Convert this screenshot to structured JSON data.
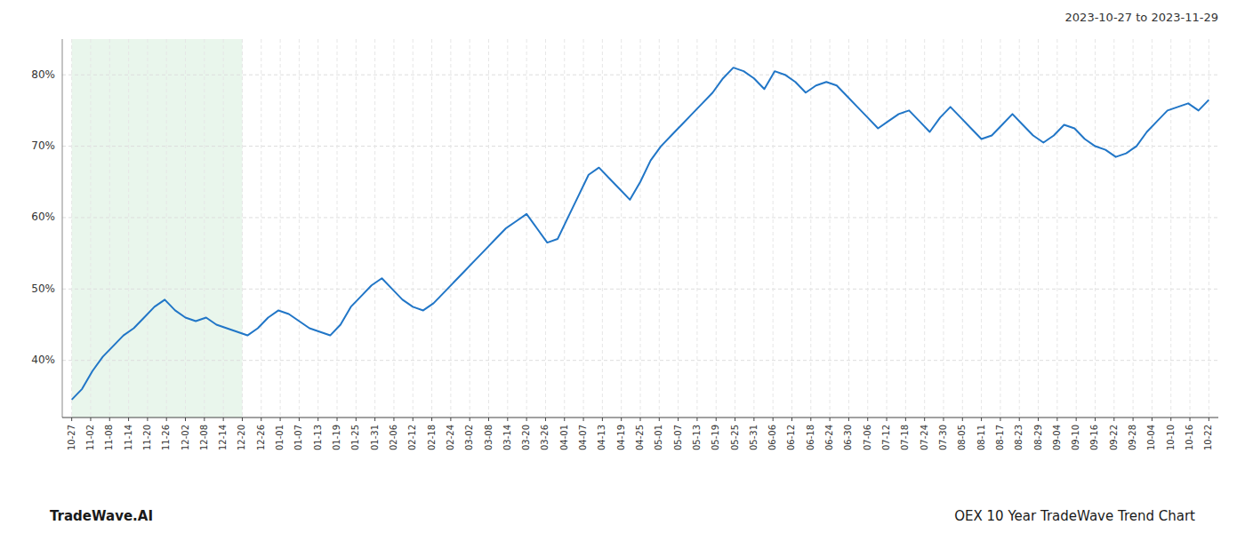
{
  "chart_data": {
    "type": "line",
    "title": "2023-10-27 to 2023-11-29",
    "annotations": [
      "TradeWave.AI",
      "OEX 10 Year TradeWave Trend Chart"
    ],
    "color": "#2176c7",
    "grid": true,
    "highlight": {
      "range": [
        0,
        9
      ],
      "color": "#d4edda"
    },
    "xlim": [
      -0.5,
      60.5
    ],
    "xticks": [
      {
        "value": 0,
        "label": "10-27"
      },
      {
        "value": 1,
        "label": "11-02"
      },
      {
        "value": 2,
        "label": "11-08"
      },
      {
        "value": 3,
        "label": "11-14"
      },
      {
        "value": 4,
        "label": "11-20"
      },
      {
        "value": 5,
        "label": "11-26"
      },
      {
        "value": 6,
        "label": "12-02"
      },
      {
        "value": 7,
        "label": "12-08"
      },
      {
        "value": 8,
        "label": "12-14"
      },
      {
        "value": 9,
        "label": "12-20"
      },
      {
        "value": 10,
        "label": "12-26"
      },
      {
        "value": 11,
        "label": "01-01"
      },
      {
        "value": 12,
        "label": "01-07"
      },
      {
        "value": 13,
        "label": "01-13"
      },
      {
        "value": 14,
        "label": "01-19"
      },
      {
        "value": 15,
        "label": "01-25"
      },
      {
        "value": 16,
        "label": "01-31"
      },
      {
        "value": 17,
        "label": "02-06"
      },
      {
        "value": 18,
        "label": "02-12"
      },
      {
        "value": 19,
        "label": "02-18"
      },
      {
        "value": 20,
        "label": "02-24"
      },
      {
        "value": 21,
        "label": "03-02"
      },
      {
        "value": 22,
        "label": "03-08"
      },
      {
        "value": 23,
        "label": "03-14"
      },
      {
        "value": 24,
        "label": "03-20"
      },
      {
        "value": 25,
        "label": "03-26"
      },
      {
        "value": 26,
        "label": "04-01"
      },
      {
        "value": 27,
        "label": "04-07"
      },
      {
        "value": 28,
        "label": "04-13"
      },
      {
        "value": 29,
        "label": "04-19"
      },
      {
        "value": 30,
        "label": "04-25"
      },
      {
        "value": 31,
        "label": "05-01"
      },
      {
        "value": 32,
        "label": "05-07"
      },
      {
        "value": 33,
        "label": "05-13"
      },
      {
        "value": 34,
        "label": "05-19"
      },
      {
        "value": 35,
        "label": "05-25"
      },
      {
        "value": 36,
        "label": "05-31"
      },
      {
        "value": 37,
        "label": "06-06"
      },
      {
        "value": 38,
        "label": "06-12"
      },
      {
        "value": 39,
        "label": "06-18"
      },
      {
        "value": 40,
        "label": "06-24"
      },
      {
        "value": 41,
        "label": "06-30"
      },
      {
        "value": 42,
        "label": "07-06"
      },
      {
        "value": 43,
        "label": "07-12"
      },
      {
        "value": 44,
        "label": "07-18"
      },
      {
        "value": 45,
        "label": "07-24"
      },
      {
        "value": 46,
        "label": "07-30"
      },
      {
        "value": 47,
        "label": "08-05"
      },
      {
        "value": 48,
        "label": "08-11"
      },
      {
        "value": 49,
        "label": "08-17"
      },
      {
        "value": 50,
        "label": "08-23"
      },
      {
        "value": 51,
        "label": "08-29"
      },
      {
        "value": 52,
        "label": "09-04"
      },
      {
        "value": 53,
        "label": "09-10"
      },
      {
        "value": 54,
        "label": "09-16"
      },
      {
        "value": 55,
        "label": "09-22"
      },
      {
        "value": 56,
        "label": "09-28"
      },
      {
        "value": 57,
        "label": "10-04"
      },
      {
        "value": 58,
        "label": "10-10"
      },
      {
        "value": 59,
        "label": "10-16"
      },
      {
        "value": 60,
        "label": "10-22"
      }
    ],
    "ylim": [
      32,
      85
    ],
    "yticks": [
      {
        "value": 40,
        "label": "40%"
      },
      {
        "value": 50,
        "label": "50%"
      },
      {
        "value": 60,
        "label": "60%"
      },
      {
        "value": 70,
        "label": "70%"
      },
      {
        "value": 80,
        "label": "80%"
      }
    ],
    "x": [
      0,
      0.545455,
      1.090909,
      1.636364,
      2.181818,
      2.727273,
      3.272727,
      3.818182,
      4.363636,
      4.909091,
      5.454545,
      6,
      6.545455,
      7.090909,
      7.636364,
      8.181818,
      8.727273,
      9.272727,
      9.818182,
      10.363636,
      10.909091,
      11.454545,
      12,
      12.545455,
      13.090909,
      13.636364,
      14.181818,
      14.727273,
      15.272727,
      15.818182,
      16.363636,
      16.909091,
      17.454545,
      18,
      18.545455,
      19.090909,
      19.636364,
      20.181818,
      20.727273,
      21.272727,
      21.818182,
      22.363636,
      22.909091,
      23.454545,
      24,
      24.545455,
      25.090909,
      25.636364,
      26.181818,
      26.727273,
      27.272727,
      27.818182,
      28.363636,
      28.909091,
      29.454545,
      30,
      30.545455,
      31.090909,
      31.636364,
      32.181818,
      32.727273,
      33.272727,
      33.818182,
      34.363636,
      34.909091,
      35.454545,
      36,
      36.545455,
      37.090909,
      37.636364,
      38.181818,
      38.727273,
      39.272727,
      39.818182,
      40.363636,
      40.909091,
      41.454545,
      42,
      42.545455,
      43.090909,
      43.636364,
      44.181818,
      44.727273,
      45.272727,
      45.818182,
      46.363636,
      46.909091,
      47.454545,
      48,
      48.545455,
      49.090909,
      49.636364,
      50.181818,
      50.727273,
      51.272727,
      51.818182,
      52.363636,
      52.909091,
      53.454545,
      54,
      54.545455,
      55.090909,
      55.636364,
      56.181818,
      56.727273,
      57.272727,
      57.818182,
      58.363636,
      58.909091,
      59.454545,
      60
    ],
    "values": [
      34.5,
      36.0,
      38.5,
      40.5,
      42.0,
      43.5,
      44.5,
      46.0,
      47.5,
      48.5,
      47.0,
      46.0,
      45.5,
      46.0,
      45.0,
      44.5,
      44.0,
      43.5,
      44.5,
      46.0,
      47.0,
      46.5,
      45.5,
      44.5,
      44.0,
      43.5,
      45.0,
      47.5,
      49.0,
      50.5,
      51.5,
      50.0,
      48.5,
      47.5,
      47.0,
      48.0,
      49.5,
      51.0,
      52.5,
      54.0,
      55.5,
      57.0,
      58.5,
      59.5,
      60.5,
      58.5,
      56.5,
      57.0,
      60.0,
      63.0,
      66.0,
      67.0,
      65.5,
      64.0,
      62.5,
      65.0,
      68.0,
      70.0,
      71.5,
      73.0,
      74.5,
      76.0,
      77.5,
      79.5,
      81.0,
      80.5,
      79.5,
      78.0,
      80.5,
      80.0,
      79.0,
      77.5,
      78.5,
      79.0,
      78.5,
      77.0,
      75.5,
      74.0,
      72.5,
      73.5,
      74.5,
      75.0,
      73.5,
      72.0,
      74.0,
      75.5,
      74.0,
      72.5,
      71.0,
      71.5,
      73.0,
      74.5,
      73.0,
      71.5,
      70.5,
      71.5,
      73.0,
      72.5,
      71.0,
      70.0,
      69.5,
      68.5,
      69.0,
      70.0,
      72.0,
      73.5,
      75.0,
      75.5,
      76.0,
      75.0,
      76.5
    ]
  }
}
